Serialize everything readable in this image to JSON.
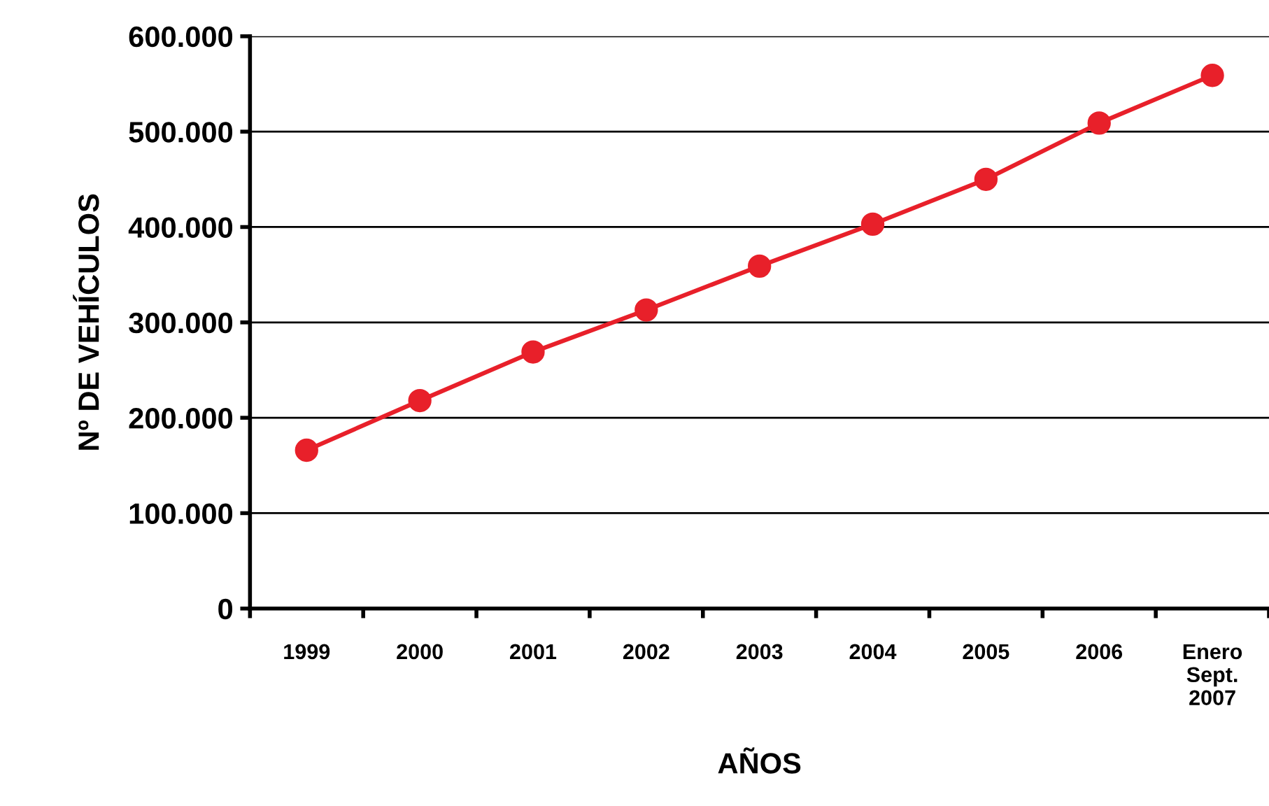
{
  "chart_data": {
    "type": "line",
    "xlabel": "AÑOS",
    "ylabel": "Nº DE VEHÍCULOS",
    "categories": [
      "1999",
      "2000",
      "2001",
      "2002",
      "2003",
      "2004",
      "2005",
      "2006",
      "Enero\nSept.\n2007"
    ],
    "series": [
      {
        "color": "#e8202a",
        "values": [
          166000,
          218000,
          269000,
          313000,
          359000,
          403000,
          450000,
          509000,
          559000
        ]
      }
    ],
    "ylim": [
      0,
      600000
    ],
    "yticks": [
      0,
      {
        "value": 100000,
        "label": "100.000"
      },
      {
        "value": 200000,
        "label": "200.000"
      },
      {
        "value": 300000,
        "label": "300.000"
      },
      {
        "value": 400000,
        "label": "400.000"
      },
      {
        "value": 500000,
        "label": "500.000"
      },
      {
        "value": 600000,
        "label": "600.000"
      }
    ],
    "grid": "y",
    "marker": "circle",
    "line_style": "solid",
    "legend": false
  }
}
